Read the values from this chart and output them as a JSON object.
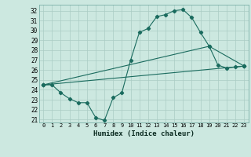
{
  "xlabel": "Humidex (Indice chaleur)",
  "bg_color": "#cce8e0",
  "grid_color": "#aaccC4",
  "line_color": "#1a6b5e",
  "xlim": [
    -0.5,
    23.5
  ],
  "ylim": [
    20.7,
    32.6
  ],
  "xticks": [
    0,
    1,
    2,
    3,
    4,
    5,
    6,
    7,
    8,
    9,
    10,
    11,
    12,
    13,
    14,
    15,
    16,
    17,
    18,
    19,
    20,
    21,
    22,
    23
  ],
  "yticks": [
    21,
    22,
    23,
    24,
    25,
    26,
    27,
    28,
    29,
    30,
    31,
    32
  ],
  "line1_x": [
    0,
    1,
    2,
    3,
    4,
    5,
    6,
    7,
    8,
    9,
    10,
    11,
    12,
    13,
    14,
    15,
    16,
    17,
    18,
    19,
    20,
    21,
    22,
    23
  ],
  "line1_y": [
    24.5,
    24.5,
    23.7,
    23.1,
    22.7,
    22.7,
    21.2,
    20.9,
    23.2,
    23.7,
    27.0,
    29.8,
    30.2,
    31.4,
    31.6,
    32.0,
    32.1,
    31.3,
    29.8,
    28.4,
    26.5,
    26.2,
    26.3,
    26.4
  ],
  "line2_x": [
    0,
    23
  ],
  "line2_y": [
    24.5,
    26.4
  ],
  "line3_x": [
    0,
    19,
    23
  ],
  "line3_y": [
    24.5,
    28.4,
    26.4
  ]
}
